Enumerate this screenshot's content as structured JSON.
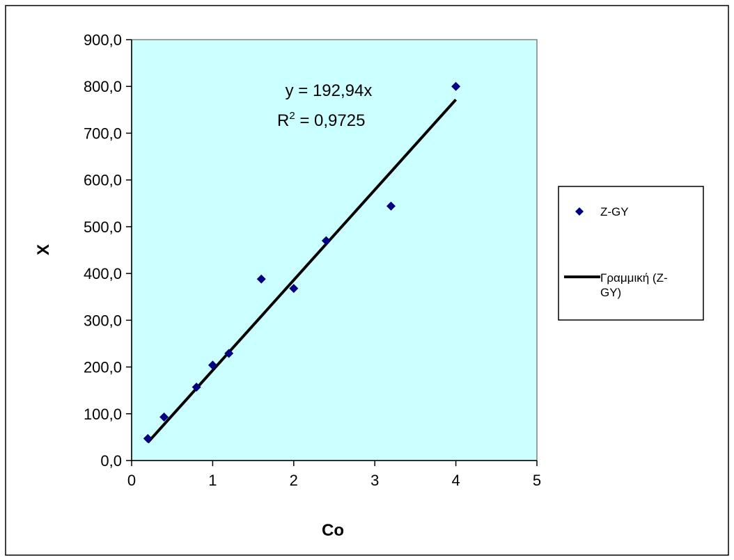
{
  "chart_data": {
    "type": "scatter",
    "xlabel": "Co",
    "ylabel": "X",
    "xlim": [
      0,
      5
    ],
    "ylim": [
      0,
      900
    ],
    "x_ticks": [
      "0",
      "1",
      "2",
      "3",
      "4",
      "5"
    ],
    "y_ticks": [
      "0,0",
      "100,0",
      "200,0",
      "300,0",
      "400,0",
      "500,0",
      "600,0",
      "700,0",
      "800,0",
      "900,0"
    ],
    "plot_background": "#ccffff",
    "marker_color": "#000080",
    "trendline_color": "#000000",
    "grid": false,
    "legend_position": "right",
    "series": [
      {
        "name": "Z-GY",
        "marker": "diamond",
        "points": [
          {
            "x": 0.2,
            "y": 47
          },
          {
            "x": 0.4,
            "y": 93
          },
          {
            "x": 0.8,
            "y": 157
          },
          {
            "x": 1.0,
            "y": 204
          },
          {
            "x": 1.2,
            "y": 229
          },
          {
            "x": 1.6,
            "y": 388
          },
          {
            "x": 2.0,
            "y": 368
          },
          {
            "x": 2.4,
            "y": 470
          },
          {
            "x": 3.2,
            "y": 544
          },
          {
            "x": 4.0,
            "y": 800
          }
        ]
      }
    ],
    "trendline": {
      "name": "Γραμμική (Z-GY)",
      "legend_line1": "Γραμμική (Z-",
      "legend_line2": "GY)",
      "slope": 192.94,
      "x_range": [
        0.2,
        4.0
      ],
      "equation": "y = 192,94x",
      "r2_prefix": "R",
      "r2_exponent": "2",
      "r2_value": " = 0,9725"
    }
  }
}
